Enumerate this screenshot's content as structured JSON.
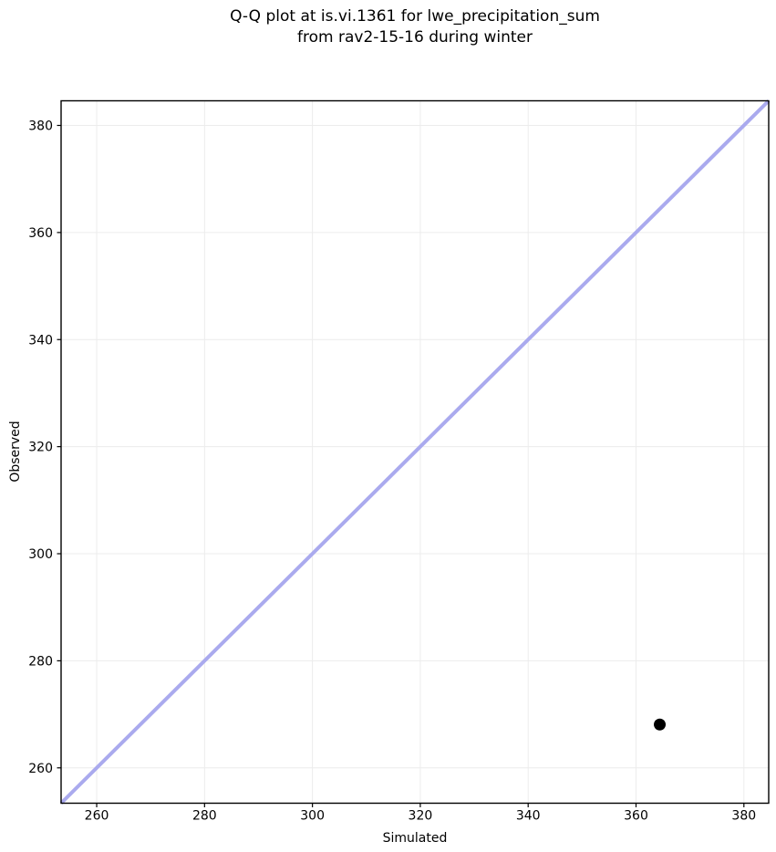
{
  "chart_data": {
    "type": "scatter",
    "title_line1": "Q-Q plot at is.vi.1361 for lwe_precipitation_sum",
    "title_line2": "from rav2-15-16 during winter",
    "xlabel": "Simulated",
    "ylabel": "Observed",
    "xlim": [
      253.4,
      384.6
    ],
    "ylim": [
      253.4,
      384.6
    ],
    "xticks": [
      260,
      280,
      300,
      320,
      340,
      360,
      380
    ],
    "yticks": [
      260,
      280,
      300,
      320,
      340,
      360,
      380
    ],
    "grid": true,
    "legend": "none",
    "points": [
      {
        "x": 364.4,
        "y": 268.1
      }
    ],
    "identity_line": {
      "from": 253.4,
      "to": 384.6
    },
    "colors": {
      "identity_line": "#aaaaee",
      "point": "#000000",
      "grid": "#ececec",
      "spine": "#000000",
      "background": "#ffffff",
      "text": "#000000"
    }
  }
}
